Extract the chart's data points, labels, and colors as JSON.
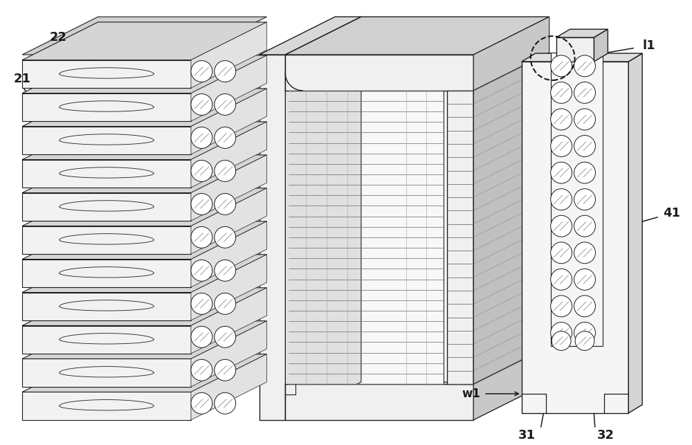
{
  "bg_color": "#ffffff",
  "line_color": "#1a1a1a",
  "figsize": [
    10.0,
    6.43
  ],
  "dpi": 100
}
